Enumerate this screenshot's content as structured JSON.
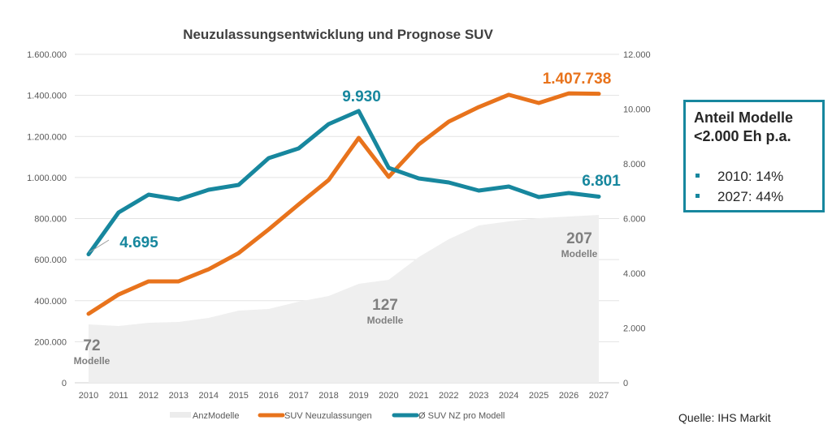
{
  "chart_data": {
    "type": "line",
    "title": "Neuzulassungsentwicklung und Prognose SUV",
    "categories": [
      "2010",
      "2011",
      "2012",
      "2013",
      "2014",
      "2015",
      "2016",
      "2017",
      "2018",
      "2019",
      "2020",
      "2021",
      "2022",
      "2023",
      "2024",
      "2025",
      "2026",
      "2027"
    ],
    "left_axis": {
      "ylim": [
        0,
        1600000
      ],
      "ticks": [
        "0",
        "200.000",
        "400.000",
        "600.000",
        "800.000",
        "1.000.000",
        "1.200.000",
        "1.400.000",
        "1.600.000"
      ]
    },
    "right_axis": {
      "ylim": [
        0,
        12000
      ],
      "ticks": [
        "0",
        "2.000",
        "4.000",
        "6.000",
        "8.000",
        "10.000",
        "12.000"
      ]
    },
    "grid": true,
    "legend_position": "bottom",
    "series": [
      {
        "name": "AnzModelle",
        "type": "area",
        "color": "#efefef",
        "values": [
          72,
          70,
          74,
          75,
          80,
          89,
          91,
          100,
          107,
          122,
          127,
          155,
          177,
          194,
          199,
          203,
          205,
          207
        ]
      },
      {
        "name": "SUV Neuzulassungen",
        "type": "line",
        "axis": "left",
        "color": "#e8731c",
        "values": [
          336000,
          430000,
          494000,
          494000,
          553000,
          632000,
          747000,
          869000,
          988000,
          1193000,
          1003000,
          1161000,
          1272000,
          1343000,
          1403000,
          1363000,
          1410000,
          1407738
        ]
      },
      {
        "name": "Ø SUV NZ pro Modell",
        "type": "line",
        "axis": "right",
        "color": "#17879e",
        "values": [
          4695,
          6222,
          6874,
          6696,
          7052,
          7230,
          8207,
          8563,
          9452,
          9930,
          7852,
          7467,
          7319,
          7022,
          7170,
          6785,
          6933,
          6801
        ]
      }
    ],
    "annotations": {
      "teal_2010": "4.695",
      "teal_2019": "9.930",
      "teal_2027": "6.801",
      "orange_2027": "1.407.738",
      "models_2010": "72",
      "models_2020": "127",
      "models_2027": "207",
      "models_word": "Modelle"
    }
  },
  "infobox": {
    "title_line1": "Anteil Modelle",
    "title_line2": "<2.000 Eh p.a.",
    "items": [
      "2010: 14%",
      "2027: 44%"
    ]
  },
  "source": "Quelle: IHS Markit"
}
